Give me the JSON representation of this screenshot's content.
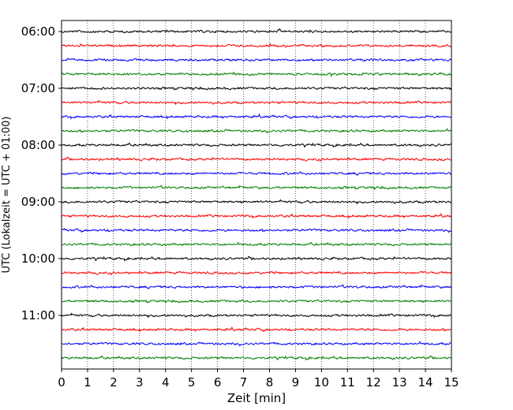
{
  "chart_data": {
    "type": "line",
    "title": "",
    "xlabel": "Zeit  [min]",
    "ylabel": "UTC (Lokalzeit = UTC + 01:00)",
    "xlim": [
      0,
      15
    ],
    "x_ticks": [
      "0",
      "1",
      "2",
      "3",
      "4",
      "5",
      "6",
      "7",
      "8",
      "9",
      "10",
      "11",
      "12",
      "13",
      "14",
      "15"
    ],
    "grid": "vertical dotted lines at each minute",
    "legend": "none",
    "start_time": "06:00",
    "trace_interval_min": 15,
    "y_ticks": [
      "06:00",
      "07:00",
      "08:00",
      "09:00",
      "10:00",
      "11:00"
    ],
    "trace_colors": [
      "#000000",
      "#ff0000",
      "#0000ff",
      "#008000"
    ],
    "trace_count": 24,
    "traces": [
      {
        "time": "06:00",
        "color": "#000000"
      },
      {
        "time": "06:15",
        "color": "#ff0000"
      },
      {
        "time": "06:30",
        "color": "#0000ff"
      },
      {
        "time": "06:45",
        "color": "#008000"
      },
      {
        "time": "07:00",
        "color": "#000000"
      },
      {
        "time": "07:15",
        "color": "#ff0000"
      },
      {
        "time": "07:30",
        "color": "#0000ff"
      },
      {
        "time": "07:45",
        "color": "#008000"
      },
      {
        "time": "08:00",
        "color": "#000000"
      },
      {
        "time": "08:15",
        "color": "#ff0000"
      },
      {
        "time": "08:30",
        "color": "#0000ff"
      },
      {
        "time": "08:45",
        "color": "#008000"
      },
      {
        "time": "09:00",
        "color": "#000000"
      },
      {
        "time": "09:15",
        "color": "#ff0000"
      },
      {
        "time": "09:30",
        "color": "#0000ff"
      },
      {
        "time": "09:45",
        "color": "#008000"
      },
      {
        "time": "10:00",
        "color": "#000000"
      },
      {
        "time": "10:15",
        "color": "#ff0000"
      },
      {
        "time": "10:30",
        "color": "#0000ff"
      },
      {
        "time": "10:45",
        "color": "#008000"
      },
      {
        "time": "11:00",
        "color": "#000000"
      },
      {
        "time": "11:15",
        "color": "#ff0000"
      },
      {
        "time": "11:30",
        "color": "#0000ff"
      },
      {
        "time": "11:45",
        "color": "#008000"
      }
    ]
  }
}
